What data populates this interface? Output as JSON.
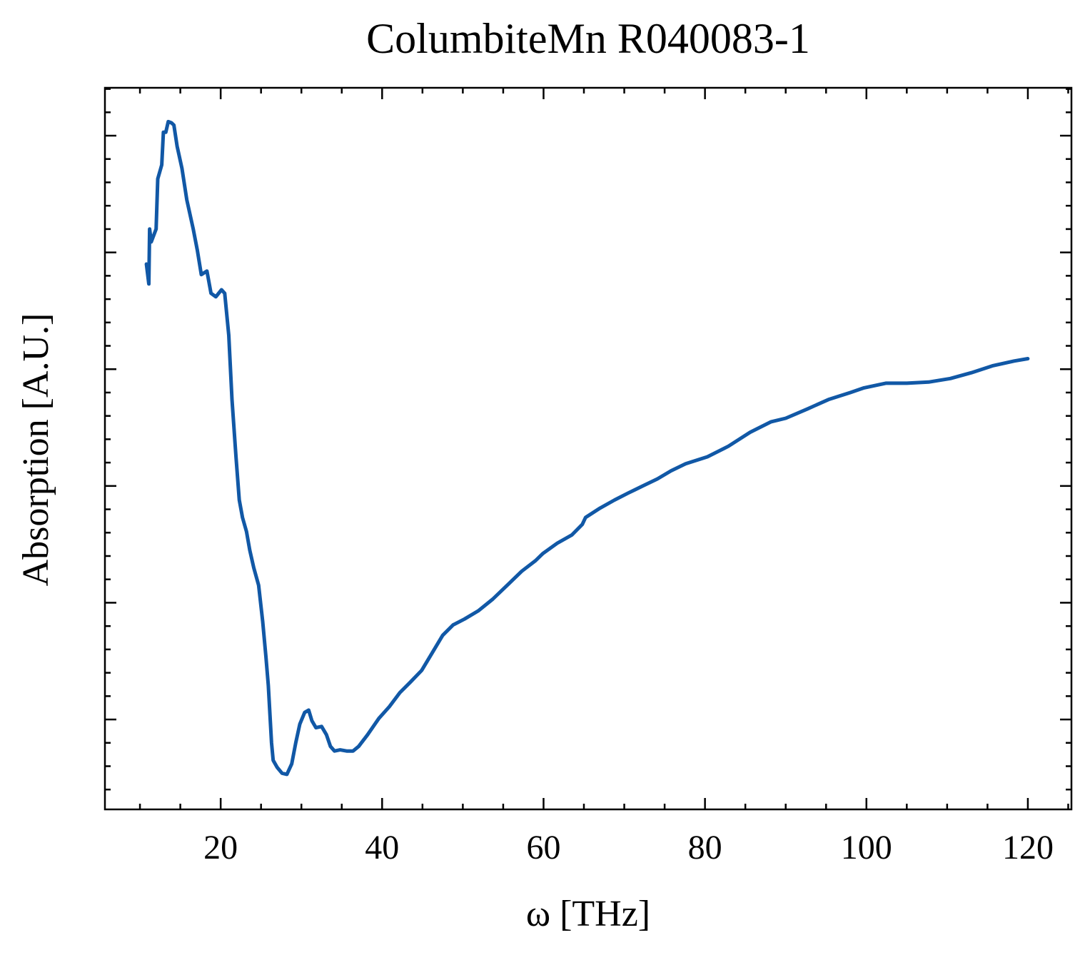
{
  "chart_data": {
    "type": "line",
    "title": "ColumbiteMn R040083-1",
    "xlabel": "ω [THz]",
    "ylabel": "Absorption [A.U.]",
    "x": [
      10.8,
      11.1,
      11.2,
      11.4,
      12.0,
      12.2,
      12.7,
      12.9,
      13.2,
      13.5,
      13.9,
      14.2,
      14.6,
      15.2,
      15.8,
      16.6,
      17.1,
      17.6,
      18.3,
      18.8,
      19.4,
      20.1,
      20.5,
      21.0,
      21.4,
      21.9,
      22.3,
      22.7,
      23.2,
      23.6,
      24.1,
      24.7,
      25.2,
      25.6,
      25.9,
      26.3,
      26.5,
      27.0,
      27.6,
      28.2,
      28.8,
      29.3,
      29.8,
      30.4,
      30.9,
      31.3,
      31.8,
      32.5,
      33.1,
      33.6,
      34.1,
      34.8,
      35.6,
      36.4,
      37.1,
      38.2,
      39.6,
      40.9,
      42.2,
      43.5,
      44.9,
      46.2,
      47.5,
      48.8,
      50.2,
      51.9,
      53.7,
      55.5,
      57.3,
      59.0,
      59.9,
      61.7,
      63.5,
      64.8,
      65.2,
      67.0,
      68.8,
      70.5,
      72.3,
      74.1,
      75.8,
      77.6,
      80.3,
      82.9,
      85.6,
      88.2,
      90.0,
      92.7,
      95.3,
      98.0,
      99.7,
      102.4,
      105.0,
      107.7,
      110.4,
      113.0,
      115.7,
      118.3,
      120.0
    ],
    "series": [
      {
        "color": "#1158a6",
        "values": [
          4.9,
          4.73,
          5.2,
          5.09,
          5.2,
          5.63,
          5.75,
          6.03,
          6.03,
          6.12,
          6.11,
          6.09,
          5.91,
          5.72,
          5.45,
          5.2,
          5.02,
          4.81,
          4.84,
          4.65,
          4.62,
          4.68,
          4.65,
          4.29,
          3.74,
          3.25,
          2.88,
          2.73,
          2.61,
          2.45,
          2.3,
          2.15,
          1.84,
          1.54,
          1.29,
          0.8,
          0.65,
          0.59,
          0.54,
          0.53,
          0.62,
          0.8,
          0.96,
          1.06,
          1.08,
          0.99,
          0.93,
          0.94,
          0.87,
          0.77,
          0.73,
          0.74,
          0.73,
          0.73,
          0.77,
          0.87,
          1.01,
          1.11,
          1.23,
          1.32,
          1.42,
          1.57,
          1.72,
          1.81,
          1.86,
          1.93,
          2.03,
          2.15,
          2.27,
          2.36,
          2.42,
          2.51,
          2.58,
          2.67,
          2.73,
          2.81,
          2.88,
          2.94,
          3.0,
          3.06,
          3.13,
          3.19,
          3.25,
          3.34,
          3.46,
          3.55,
          3.58,
          3.66,
          3.74,
          3.8,
          3.84,
          3.88,
          3.88,
          3.89,
          3.92,
          3.97,
          4.03,
          4.07,
          4.09
        ]
      }
    ],
    "xlim": [
      5.66,
      125.4
    ],
    "xticks": [
      20,
      40,
      60,
      80,
      100,
      120
    ],
    "xminor": [
      10,
      15,
      25,
      30,
      35,
      45,
      50,
      55,
      65,
      70,
      75,
      85,
      90,
      95,
      105,
      110,
      115,
      125
    ],
    "ylim": [
      0.23,
      6.41
    ],
    "yticks": [
      1,
      2,
      3,
      4,
      5,
      6
    ],
    "yminor": [
      0.4,
      0.6,
      0.8,
      1.2,
      1.4,
      1.6,
      1.8,
      2.2,
      2.4,
      2.6,
      2.8,
      3.2,
      3.4,
      3.6,
      3.8,
      4.2,
      4.4,
      4.6,
      4.8,
      5.2,
      5.4,
      5.6,
      5.8,
      6.2,
      6.4
    ]
  }
}
